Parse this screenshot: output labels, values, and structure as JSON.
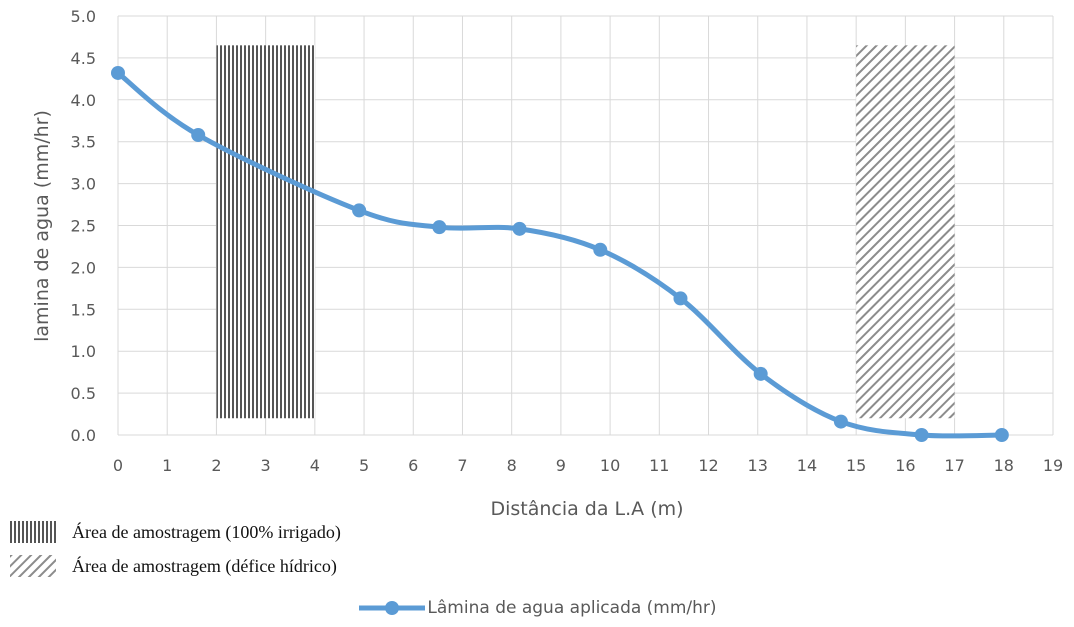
{
  "chart_data": {
    "type": "line",
    "title": "",
    "xlabel": "Distância da L.A (m)",
    "ylabel": "lamina de agua (mm/hr)",
    "xlim": [
      0,
      19
    ],
    "ylim": [
      0,
      5
    ],
    "x_ticks": [
      "0",
      "1",
      "2",
      "3",
      "4",
      "5",
      "6",
      "7",
      "8",
      "9",
      "10",
      "11",
      "12",
      "13",
      "14",
      "15",
      "16",
      "17",
      "18",
      "19"
    ],
    "y_ticks": [
      "0.0",
      "0.5",
      "1.0",
      "1.5",
      "2.0",
      "2.5",
      "3.0",
      "3.5",
      "4.0",
      "4.5",
      "5.0"
    ],
    "grid": true,
    "series": [
      {
        "name": "Lâmina de agua aplicada (mm/hr)",
        "color": "#5B9BD5",
        "x": [
          0,
          1.63,
          4.9,
          6.53,
          8.16,
          9.8,
          11.43,
          13.06,
          14.69,
          16.33,
          17.96
        ],
        "y": [
          4.32,
          3.58,
          2.68,
          2.48,
          2.46,
          2.21,
          1.63,
          0.73,
          0.16,
          0.0,
          0.0
        ]
      }
    ],
    "shaded_regions": [
      {
        "label": "Área de amostragem (100% irrigado)",
        "x": [
          2,
          4
        ],
        "y": [
          0.2,
          4.65
        ],
        "pattern": "vertical-hatch"
      },
      {
        "label": "Área de amostragem (défice hídrico)",
        "x": [
          15,
          17
        ],
        "y": [
          0.2,
          4.65
        ],
        "pattern": "diagonal-hatch"
      }
    ],
    "legend_position": "bottom-center"
  }
}
